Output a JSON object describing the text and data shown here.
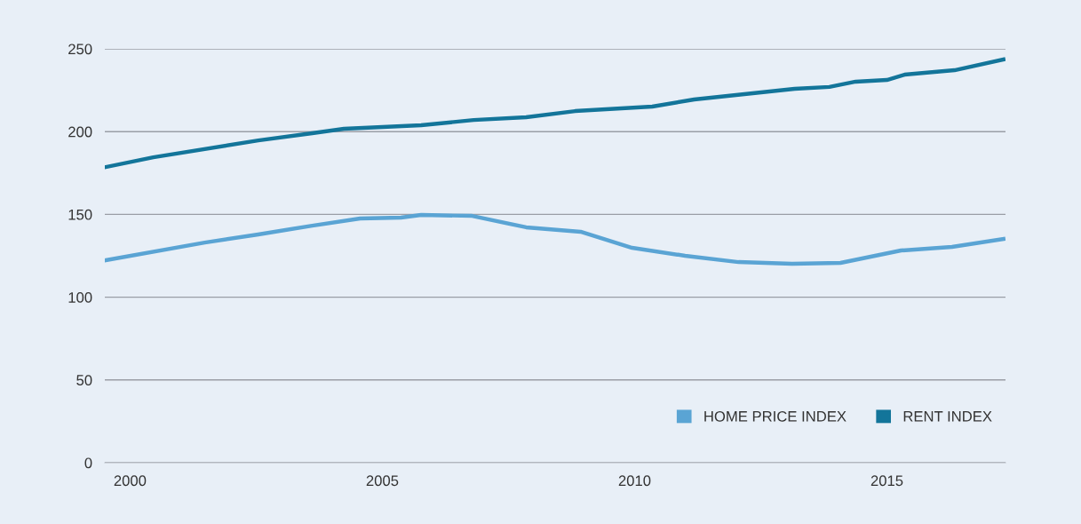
{
  "chart_data": {
    "type": "line",
    "series": [
      {
        "name": "HOME PRICE INDEX",
        "color": "#5aa4d4",
        "x": [
          1999.52,
          2001.48,
          2002.54,
          2003.61,
          2004.56,
          2005.37,
          2005.77,
          2006.78,
          2007.85,
          2008.93,
          2009.95,
          2011.0,
          2012.06,
          2013.12,
          2014.08,
          2015.28,
          2016.29,
          2017.31
        ],
        "values": [
          122.3,
          133,
          137.9,
          143.2,
          147.5,
          148.1,
          149.7,
          149.1,
          142.2,
          139.5,
          129.8,
          125,
          121.2,
          120.2,
          120.7,
          128.2,
          130.4,
          135.2
        ]
      },
      {
        "name": "RENT INDEX",
        "color": "#13759a",
        "x": [
          1999.52,
          2000.46,
          2002.54,
          2003.61,
          2004.24,
          2005.77,
          2006.81,
          2007.85,
          2008.82,
          2010.35,
          2011.18,
          2013.17,
          2013.86,
          2014.38,
          2015.0,
          2015.35,
          2016.34,
          2017.31
        ],
        "values": [
          178.6,
          184.5,
          194.7,
          199,
          201.7,
          203.9,
          207,
          208.7,
          212.4,
          215.1,
          219.4,
          225.9,
          227,
          230.2,
          231.2,
          234.4,
          237.1,
          243.6
        ]
      }
    ],
    "xlim": [
      1999.5,
      2017.35
    ],
    "xticks": [
      2000,
      2005,
      2010,
      2015
    ],
    "ylim": [
      0,
      250
    ],
    "yticks": [
      0,
      50,
      100,
      150,
      200,
      250
    ],
    "grid": "y",
    "legend": "bottom right",
    "marker": "none",
    "line_style": "solid"
  }
}
